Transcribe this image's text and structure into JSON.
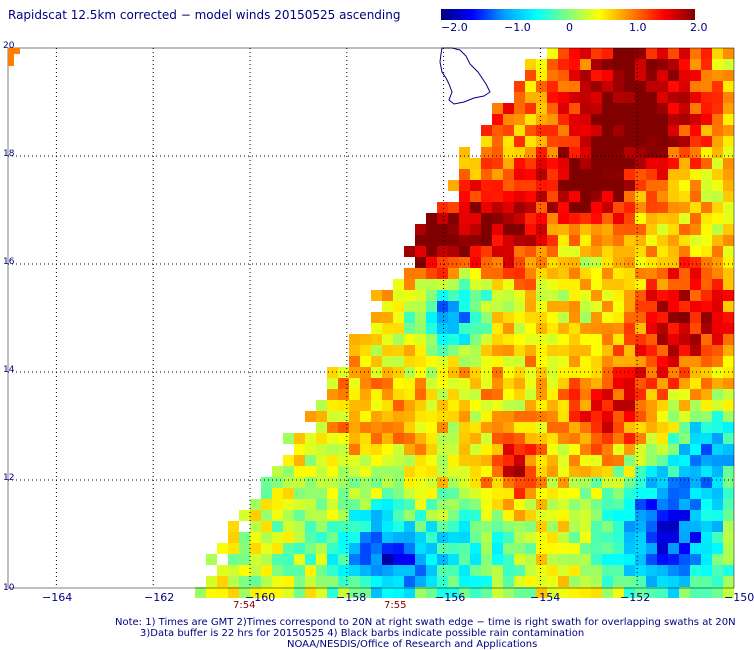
{
  "title": "Rapidscat 12.5km corrected − model winds 20150525 ascending",
  "colorbar": {
    "tick_labels": [
      "−2.0",
      "−1.0",
      "0",
      "1.0",
      "2.0"
    ],
    "range": [
      -2.0,
      2.0
    ],
    "colors": [
      "#000080",
      "#0000ff",
      "#00a0ff",
      "#00ffff",
      "#80ff80",
      "#ffff00",
      "#ff8000",
      "#ff0000",
      "#800000"
    ]
  },
  "map": {
    "lon_range": [
      -165,
      -150
    ],
    "lat_range": [
      10,
      20
    ],
    "x_ticks": [
      "−164",
      "−162",
      "−160",
      "−158",
      "−156",
      "−154",
      "−152",
      "−150"
    ],
    "y_ticks": [
      "10",
      "12",
      "14",
      "16",
      "18",
      "20"
    ],
    "times": [
      "7:54",
      "7:55"
    ],
    "land_outline_color": "#000080",
    "grid": "dotted",
    "marker_color": "#ff8000"
  },
  "notes": {
    "line1": "Note: 1) Times are GMT 2)Times correspond to 20N at right swath edge − time is right swath for overlapping swaths at 20N",
    "line2": "3)Data buffer is 22 hrs for 20150525 4) Black barbs indicate possible rain contamination",
    "line3": "NOAA/NESDIS/Office of Research and Applications"
  }
}
